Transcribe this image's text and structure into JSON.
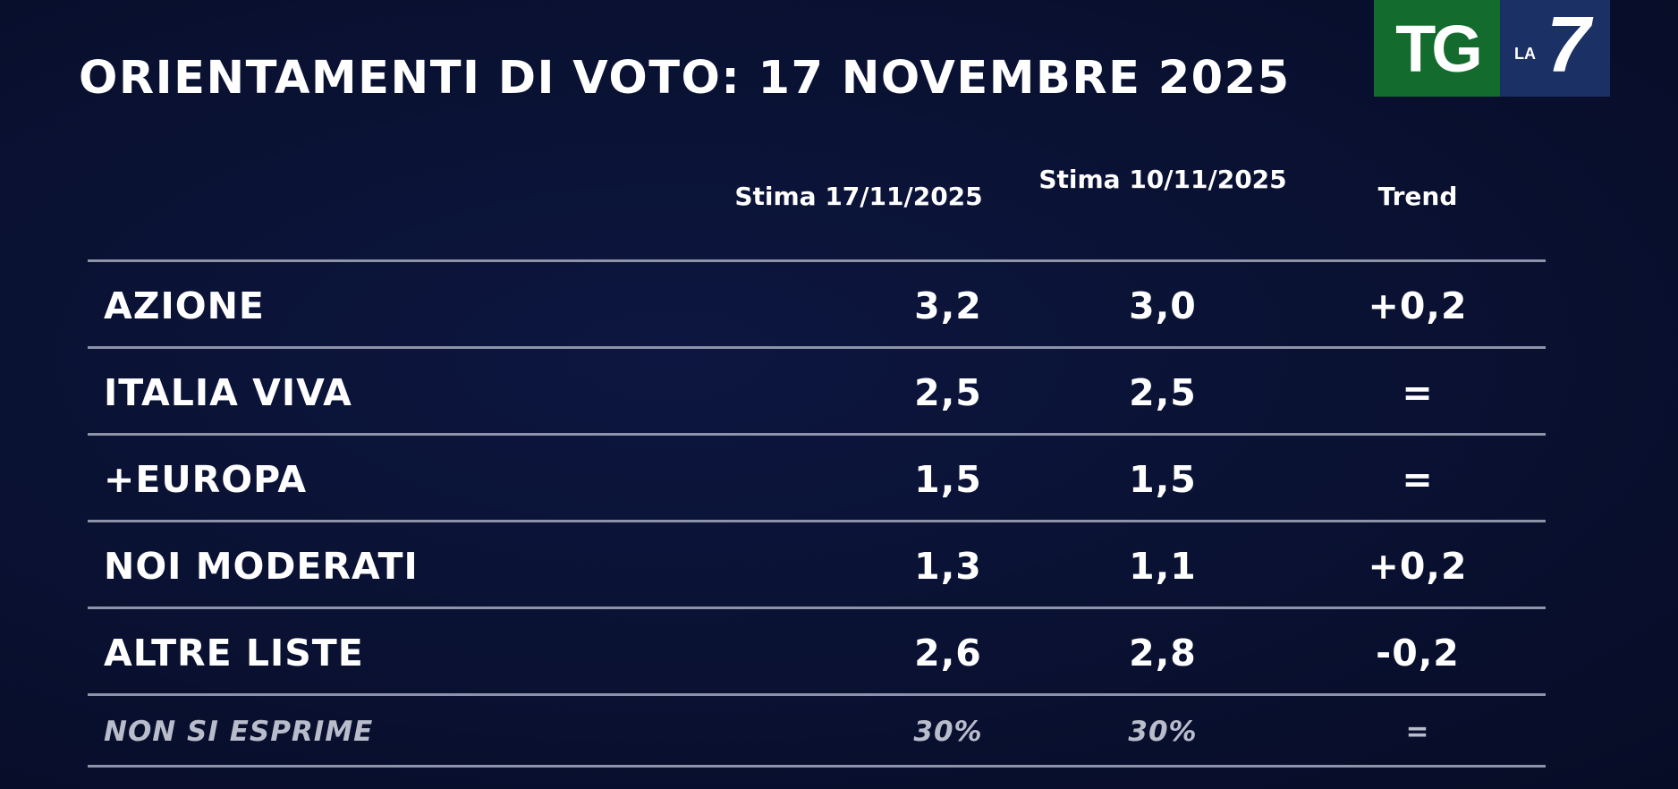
{
  "title": "ORIENTAMENTI DI VOTO: 17 NOVEMBRE 2025",
  "logo": {
    "tg": "TG",
    "la": "LA",
    "seven": "7"
  },
  "columns": {
    "current": "Stima 17/11/2025",
    "previous": "Stima 10/11/2025",
    "trend": "Trend"
  },
  "rows": [
    {
      "party": "AZIONE",
      "current": "3,2",
      "previous": "3,0",
      "trend": "+0,2"
    },
    {
      "party": "ITALIA VIVA",
      "current": "2,5",
      "previous": "2,5",
      "trend": "="
    },
    {
      "party": "+EUROPA",
      "current": "1,5",
      "previous": "1,5",
      "trend": "="
    },
    {
      "party": "NOI MODERATI",
      "current": "1,3",
      "previous": "1,1",
      "trend": "+0,2"
    },
    {
      "party": "ALTRE LISTE",
      "current": "2,6",
      "previous": "2,8",
      "trend": "-0,2"
    }
  ],
  "abstain": {
    "party": "NON SI ESPRIME",
    "current": "30%",
    "previous": "30%",
    "trend": "="
  },
  "colors": {
    "background": "#0a1234",
    "logo_green": "#136c2e",
    "logo_blue": "#1b3166",
    "divider": "#8d93a8",
    "muted_text": "#b8bccb"
  }
}
